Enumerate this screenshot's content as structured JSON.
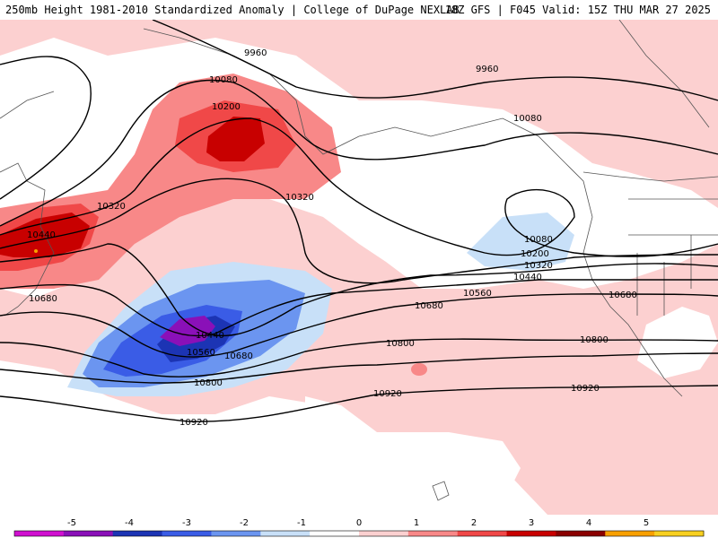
{
  "header": {
    "title_left": "250mb Height 1981-2010 Standardized Anomaly | College of DuPage NEXLAB",
    "title_right": "18Z GFS | F045 Valid: 15Z THU MAR 27 2025"
  },
  "contour_labels": [
    "9960",
    "9960",
    "10080",
    "10080",
    "10080",
    "10200",
    "10200",
    "10320",
    "10320",
    "10320",
    "10440",
    "10440",
    "10440",
    "10560",
    "10560",
    "10680",
    "10680",
    "10680",
    "10680",
    "10800",
    "10800",
    "10800",
    "10920",
    "10920",
    "10920"
  ],
  "colorbar": {
    "ticks": [
      "-5",
      "-4",
      "-3",
      "-2",
      "-1",
      "0",
      "1",
      "2",
      "3",
      "4",
      "5"
    ],
    "colors": [
      "#d010d0",
      "#8a10b8",
      "#1c34b4",
      "#3a5ce6",
      "#6b95f0",
      "#c8e0f8",
      "#ffffff",
      "#fcd0d0",
      "#f88888",
      "#f04848",
      "#c80000",
      "#8a0000",
      "#f8a000",
      "#f8d020"
    ]
  }
}
